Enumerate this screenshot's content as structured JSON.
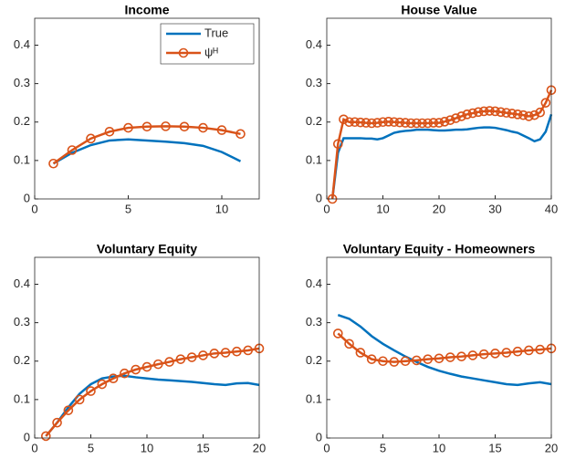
{
  "chart_data": [
    {
      "type": "line",
      "title": "Income",
      "legend": "northeast",
      "x": [
        1,
        2,
        3,
        4,
        5,
        6,
        7,
        8,
        9,
        10,
        11
      ],
      "series": [
        {
          "name": "True",
          "color": "#0072BD",
          "marker": false,
          "values": [
            0.092,
            0.12,
            0.14,
            0.152,
            0.155,
            0.152,
            0.149,
            0.145,
            0.138,
            0.122,
            0.098
          ]
        },
        {
          "name": "ψᴴ",
          "color": "#D95319",
          "marker": true,
          "values": [
            0.092,
            0.127,
            0.157,
            0.175,
            0.185,
            0.188,
            0.189,
            0.188,
            0.185,
            0.179,
            0.169
          ]
        }
      ],
      "xlim": [
        0,
        12
      ],
      "xticks": [
        0,
        5,
        10
      ],
      "ylim": [
        0,
        0.47
      ],
      "yticks": [
        0,
        0.1,
        0.2,
        0.3,
        0.4
      ]
    },
    {
      "type": "line",
      "title": "House Value",
      "x": [
        1,
        2,
        3,
        4,
        5,
        6,
        7,
        8,
        9,
        10,
        11,
        12,
        13,
        14,
        15,
        16,
        17,
        18,
        19,
        20,
        21,
        22,
        23,
        24,
        25,
        26,
        27,
        28,
        29,
        30,
        31,
        32,
        33,
        34,
        35,
        36,
        37,
        38,
        39,
        40
      ],
      "series": [
        {
          "color": "#0072BD",
          "marker": false,
          "values": [
            0,
            0.12,
            0.158,
            0.158,
            0.158,
            0.158,
            0.157,
            0.157,
            0.155,
            0.158,
            0.165,
            0.172,
            0.175,
            0.177,
            0.178,
            0.18,
            0.18,
            0.18,
            0.179,
            0.178,
            0.178,
            0.179,
            0.18,
            0.18,
            0.181,
            0.183,
            0.185,
            0.186,
            0.186,
            0.185,
            0.182,
            0.179,
            0.175,
            0.172,
            0.165,
            0.158,
            0.15,
            0.155,
            0.175,
            0.22
          ]
        },
        {
          "color": "#D95319",
          "marker": true,
          "values": [
            0,
            0.143,
            0.207,
            0.2,
            0.2,
            0.199,
            0.198,
            0.197,
            0.198,
            0.2,
            0.201,
            0.2,
            0.199,
            0.198,
            0.197,
            0.197,
            0.197,
            0.197,
            0.198,
            0.198,
            0.201,
            0.205,
            0.21,
            0.215,
            0.22,
            0.223,
            0.226,
            0.228,
            0.229,
            0.228,
            0.226,
            0.224,
            0.222,
            0.22,
            0.218,
            0.215,
            0.218,
            0.225,
            0.25,
            0.283
          ]
        }
      ],
      "xlim": [
        0,
        40
      ],
      "xticks": [
        0,
        10,
        20,
        30,
        40
      ],
      "ylim": [
        0,
        0.47
      ],
      "yticks": [
        0,
        0.1,
        0.2,
        0.3,
        0.4
      ]
    },
    {
      "type": "line",
      "title": "Voluntary Equity",
      "x": [
        1,
        2,
        3,
        4,
        5,
        6,
        7,
        8,
        9,
        10,
        11,
        12,
        13,
        14,
        15,
        16,
        17,
        18,
        19,
        20
      ],
      "series": [
        {
          "color": "#0072BD",
          "marker": false,
          "values": [
            0.005,
            0.04,
            0.08,
            0.115,
            0.14,
            0.155,
            0.16,
            0.162,
            0.158,
            0.155,
            0.152,
            0.15,
            0.148,
            0.146,
            0.143,
            0.14,
            0.138,
            0.142,
            0.143,
            0.138
          ]
        },
        {
          "color": "#D95319",
          "marker": true,
          "values": [
            0.005,
            0.04,
            0.072,
            0.1,
            0.122,
            0.14,
            0.155,
            0.168,
            0.178,
            0.185,
            0.192,
            0.198,
            0.205,
            0.21,
            0.215,
            0.22,
            0.222,
            0.225,
            0.228,
            0.233
          ]
        }
      ],
      "xlim": [
        0,
        20
      ],
      "xticks": [
        0,
        5,
        10,
        15,
        20
      ],
      "ylim": [
        0,
        0.47
      ],
      "yticks": [
        0,
        0.1,
        0.2,
        0.3,
        0.4
      ]
    },
    {
      "type": "line",
      "title": "Voluntary Equity - Homeowners",
      "x": [
        1,
        2,
        3,
        4,
        5,
        6,
        7,
        8,
        9,
        10,
        11,
        12,
        13,
        14,
        15,
        16,
        17,
        18,
        19,
        20
      ],
      "series": [
        {
          "color": "#0072BD",
          "marker": false,
          "values": [
            0.32,
            0.31,
            0.29,
            0.265,
            0.245,
            0.228,
            0.212,
            0.198,
            0.185,
            0.175,
            0.167,
            0.16,
            0.155,
            0.15,
            0.145,
            0.14,
            0.138,
            0.142,
            0.145,
            0.14
          ]
        },
        {
          "color": "#D95319",
          "marker": true,
          "values": [
            0.272,
            0.245,
            0.222,
            0.205,
            0.2,
            0.198,
            0.2,
            0.202,
            0.205,
            0.207,
            0.21,
            0.212,
            0.215,
            0.218,
            0.22,
            0.222,
            0.225,
            0.228,
            0.23,
            0.233
          ]
        }
      ],
      "xlim": [
        0,
        20
      ],
      "xticks": [
        0,
        5,
        10,
        15,
        20
      ],
      "ylim": [
        0,
        0.47
      ],
      "yticks": [
        0,
        0.1,
        0.2,
        0.3,
        0.4
      ]
    }
  ]
}
